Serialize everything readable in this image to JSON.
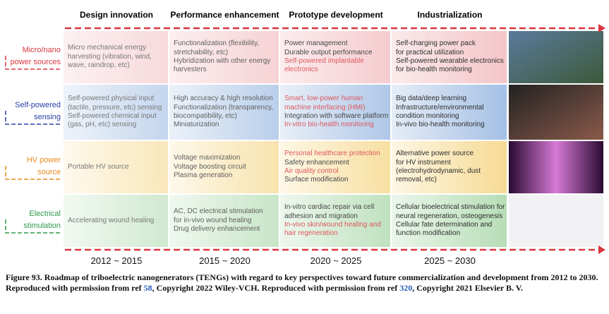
{
  "headers": [
    "Design innovation",
    "Performance enhancement",
    "Prototype development",
    "Industrialization"
  ],
  "rows": [
    {
      "label": [
        "Micro/nano",
        "power sources"
      ],
      "color": "#d9363e",
      "tint": [
        "#fbe9ea",
        "#f3c2c6"
      ],
      "cells": [
        [
          {
            "text": "Micro mechanical energy",
            "color": "#222"
          },
          {
            "text": "harvesting (vibration, wind,",
            "color": "#222"
          },
          {
            "text": "wave, raindrop, etc)",
            "color": "#222"
          }
        ],
        [
          {
            "text": "Functionalization (flexibility,",
            "color": "#222"
          },
          {
            "text": "stretchability, etc)",
            "color": "#222"
          },
          {
            "text": "Hybridization with other energy",
            "color": "#222"
          },
          {
            "text": "harvesters",
            "color": "#222"
          }
        ],
        [
          {
            "text": "Power management",
            "color": "#222"
          },
          {
            "text": "Durable output performance",
            "color": "#222"
          },
          {
            "text": "Self-powered implantable",
            "color": "#d9363e"
          },
          {
            "text": "electronics",
            "color": "#d9363e"
          }
        ],
        [
          {
            "text": "Self-charging power pack",
            "color": "#222"
          },
          {
            "text": "for practical utilization",
            "color": "#222"
          },
          {
            "text": "Self-powered wearable electronics",
            "color": "#222"
          },
          {
            "text": "for bio-health monitoring",
            "color": "#222"
          }
        ]
      ]
    },
    {
      "label": [
        "Self-powered",
        "sensing"
      ],
      "color": "#2b3fa8",
      "tint": [
        "#e4ecf7",
        "#9fbde3"
      ],
      "cells": [
        [
          {
            "text": "Self-powered physical input",
            "color": "#222"
          },
          {
            "text": "(tactile, pressure, etc) sensing",
            "color": "#222"
          },
          {
            "text": "Self-powered chemical input",
            "color": "#222"
          },
          {
            "text": "(gas, pH, etc) sensing",
            "color": "#222"
          }
        ],
        [
          {
            "text": "High accuracy & high resolution",
            "color": "#222"
          },
          {
            "text": "Functionalization (transparency,",
            "color": "#222"
          },
          {
            "text": "biocompatibility, etc)",
            "color": "#222"
          },
          {
            "text": "Miniaturization",
            "color": "#222"
          }
        ],
        [
          {
            "text": "Smart, low-power human",
            "color": "#d9363e"
          },
          {
            "text": "machine interfacing (HMI)",
            "color": "#d9363e"
          },
          {
            "text": "Integration with software platform",
            "color": "#222"
          },
          {
            "text": "In-vitro bio-health monitoring",
            "color": "#d9363e"
          }
        ],
        [
          {
            "text": "Big data/deep learning",
            "color": "#222"
          },
          {
            "text": "Infrastructure/environmental",
            "color": "#222"
          },
          {
            "text": "condition monitoring",
            "color": "#222"
          },
          {
            "text": "In-vivo bio-health monitoring",
            "color": "#222"
          }
        ]
      ]
    },
    {
      "label": [
        "HV power",
        "source"
      ],
      "color": "#e8891c",
      "tint": [
        "#fdf6e2",
        "#f6d98e"
      ],
      "cells": [
        [
          {
            "text": "Portable HV source",
            "color": "#222"
          }
        ],
        [
          {
            "text": "Voltage maximization",
            "color": "#222"
          },
          {
            "text": "Voltage boosting circuit",
            "color": "#222"
          },
          {
            "text": "Plasma generation",
            "color": "#222"
          }
        ],
        [
          {
            "text": "Personal healthcare protection",
            "color": "#d9363e"
          },
          {
            "text": "Safety enhancement",
            "color": "#222"
          },
          {
            "text": "Air quality control",
            "color": "#d9363e"
          },
          {
            "text": "Surface modification",
            "color": "#222"
          }
        ],
        [
          {
            "text": "Alternative power source",
            "color": "#222"
          },
          {
            "text": "for HV instrument",
            "color": "#222"
          },
          {
            "text": "(electrohydrodynamic, dust",
            "color": "#222"
          },
          {
            "text": "removal, etc)",
            "color": "#222"
          }
        ]
      ]
    },
    {
      "label": [
        "Electrical",
        "stimulation"
      ],
      "color": "#2f9a4a",
      "tint": [
        "#eaf6ea",
        "#b3dcb2"
      ],
      "cells": [
        [
          {
            "text": "Accelerating wound healing",
            "color": "#222"
          }
        ],
        [
          {
            "text": "AC, DC electrical stimulation",
            "color": "#222"
          },
          {
            "text": "for in-vivo wound healing",
            "color": "#222"
          },
          {
            "text": "Drug delivery enhancement",
            "color": "#222"
          }
        ],
        [
          {
            "text": "In-vitro cardiac repair via cell",
            "color": "#222"
          },
          {
            "text": "adhesion and migration",
            "color": "#222"
          },
          {
            "text": "In-vivo skin/wound healing and",
            "color": "#d9363e"
          },
          {
            "text": "hair regeneration",
            "color": "#d9363e"
          }
        ],
        [
          {
            "text": "Cellular bioelectrical stimulation for",
            "color": "#222"
          },
          {
            "text": "neural regeneration, osteogenesis",
            "color": "#222"
          },
          {
            "text": "Cellular fate determination and",
            "color": "#222"
          },
          {
            "text": "function modification",
            "color": "#222"
          }
        ]
      ]
    }
  ],
  "periods": [
    "2012 ~ 2015",
    "2015 ~ 2020",
    "2020 ~ 2025",
    "2025 ~ 2030"
  ],
  "caption": [
    {
      "text": "Figure 93. Roadmap of triboelectric nanogenerators (TENGs) with regard to key perspectives toward future commercialization and development from 2012 to 2030. Reproduced with permission from ref ",
      "color": "#111"
    },
    {
      "text": "58",
      "color": "#2b5fb4"
    },
    {
      "text": ", Copyright 2022 Wiley-VCH. Reproduced with permission from ref ",
      "color": "#111"
    },
    {
      "text": "320",
      "color": "#2b5fb4"
    },
    {
      "text": ", Copyright 2021 Elsevier B. V.",
      "color": "#111"
    }
  ]
}
